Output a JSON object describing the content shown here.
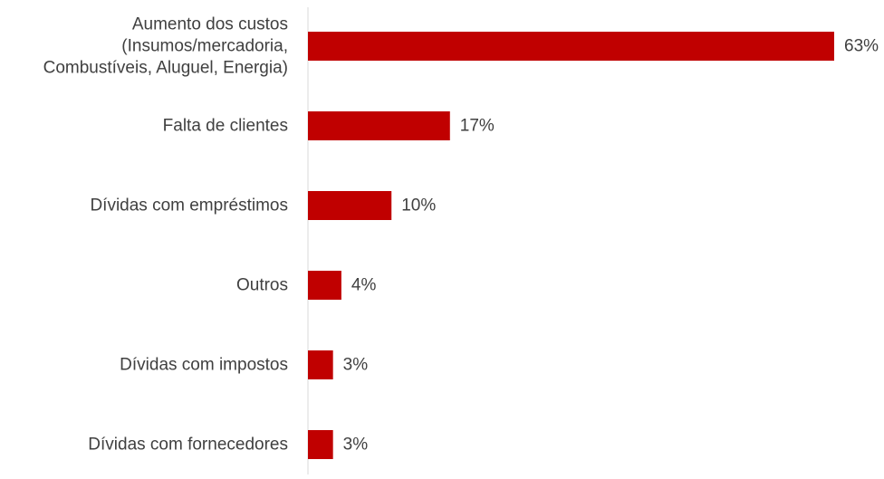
{
  "chart_data": {
    "type": "bar",
    "orientation": "horizontal",
    "categories": [
      [
        "Aumento dos custos",
        "(Insumos/mercadoria,",
        "Combustíveis, Aluguel, Energia)"
      ],
      [
        "Falta de clientes"
      ],
      [
        "Dívidas com empréstimos"
      ],
      [
        "Outros"
      ],
      [
        "Dívidas com impostos"
      ],
      [
        "Dívidas com fornecedores"
      ]
    ],
    "values": [
      63,
      17,
      10,
      4,
      3,
      3
    ],
    "value_labels": [
      "63%",
      "17%",
      "10%",
      "4%",
      "3%",
      "3%"
    ],
    "unit": "%",
    "xlim": [
      0,
      63
    ],
    "grid": false,
    "legend": "none",
    "title": "",
    "xlabel": "",
    "ylabel": ""
  },
  "colors": {
    "bar": "#c00000",
    "axis": "#d9d9d9",
    "text": "#404040"
  }
}
